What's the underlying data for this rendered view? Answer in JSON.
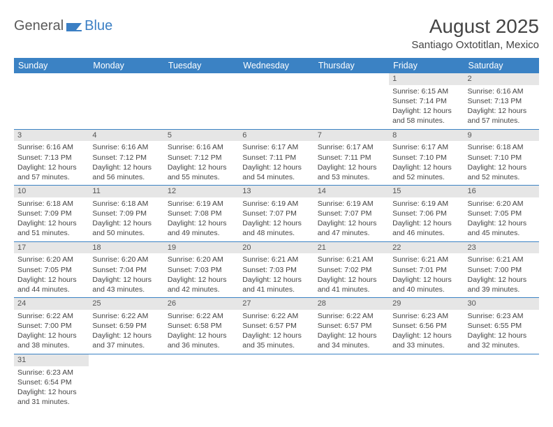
{
  "logo": {
    "text_general": "General",
    "text_blue": "Blue"
  },
  "title": "August 2025",
  "location": "Santiago Oxtotitlan, Mexico",
  "colors": {
    "header_bg": "#3b82c4",
    "header_text": "#ffffff",
    "daynum_bg": "#e6e6e6",
    "row_border": "#3b82c4",
    "body_text": "#444444",
    "logo_gray": "#5a5a5a",
    "logo_blue": "#3b7fc4",
    "page_bg": "#ffffff"
  },
  "typography": {
    "title_fontsize": 28,
    "location_fontsize": 15,
    "dayheader_fontsize": 12.5,
    "cell_fontsize": 10.5,
    "daynum_fontsize": 11
  },
  "day_headers": [
    "Sunday",
    "Monday",
    "Tuesday",
    "Wednesday",
    "Thursday",
    "Friday",
    "Saturday"
  ],
  "weeks": [
    [
      null,
      null,
      null,
      null,
      null,
      {
        "n": "1",
        "sr": "Sunrise: 6:15 AM",
        "ss": "Sunset: 7:14 PM",
        "dl": "Daylight: 12 hours and 58 minutes."
      },
      {
        "n": "2",
        "sr": "Sunrise: 6:16 AM",
        "ss": "Sunset: 7:13 PM",
        "dl": "Daylight: 12 hours and 57 minutes."
      }
    ],
    [
      {
        "n": "3",
        "sr": "Sunrise: 6:16 AM",
        "ss": "Sunset: 7:13 PM",
        "dl": "Daylight: 12 hours and 57 minutes."
      },
      {
        "n": "4",
        "sr": "Sunrise: 6:16 AM",
        "ss": "Sunset: 7:12 PM",
        "dl": "Daylight: 12 hours and 56 minutes."
      },
      {
        "n": "5",
        "sr": "Sunrise: 6:16 AM",
        "ss": "Sunset: 7:12 PM",
        "dl": "Daylight: 12 hours and 55 minutes."
      },
      {
        "n": "6",
        "sr": "Sunrise: 6:17 AM",
        "ss": "Sunset: 7:11 PM",
        "dl": "Daylight: 12 hours and 54 minutes."
      },
      {
        "n": "7",
        "sr": "Sunrise: 6:17 AM",
        "ss": "Sunset: 7:11 PM",
        "dl": "Daylight: 12 hours and 53 minutes."
      },
      {
        "n": "8",
        "sr": "Sunrise: 6:17 AM",
        "ss": "Sunset: 7:10 PM",
        "dl": "Daylight: 12 hours and 52 minutes."
      },
      {
        "n": "9",
        "sr": "Sunrise: 6:18 AM",
        "ss": "Sunset: 7:10 PM",
        "dl": "Daylight: 12 hours and 52 minutes."
      }
    ],
    [
      {
        "n": "10",
        "sr": "Sunrise: 6:18 AM",
        "ss": "Sunset: 7:09 PM",
        "dl": "Daylight: 12 hours and 51 minutes."
      },
      {
        "n": "11",
        "sr": "Sunrise: 6:18 AM",
        "ss": "Sunset: 7:09 PM",
        "dl": "Daylight: 12 hours and 50 minutes."
      },
      {
        "n": "12",
        "sr": "Sunrise: 6:19 AM",
        "ss": "Sunset: 7:08 PM",
        "dl": "Daylight: 12 hours and 49 minutes."
      },
      {
        "n": "13",
        "sr": "Sunrise: 6:19 AM",
        "ss": "Sunset: 7:07 PM",
        "dl": "Daylight: 12 hours and 48 minutes."
      },
      {
        "n": "14",
        "sr": "Sunrise: 6:19 AM",
        "ss": "Sunset: 7:07 PM",
        "dl": "Daylight: 12 hours and 47 minutes."
      },
      {
        "n": "15",
        "sr": "Sunrise: 6:19 AM",
        "ss": "Sunset: 7:06 PM",
        "dl": "Daylight: 12 hours and 46 minutes."
      },
      {
        "n": "16",
        "sr": "Sunrise: 6:20 AM",
        "ss": "Sunset: 7:05 PM",
        "dl": "Daylight: 12 hours and 45 minutes."
      }
    ],
    [
      {
        "n": "17",
        "sr": "Sunrise: 6:20 AM",
        "ss": "Sunset: 7:05 PM",
        "dl": "Daylight: 12 hours and 44 minutes."
      },
      {
        "n": "18",
        "sr": "Sunrise: 6:20 AM",
        "ss": "Sunset: 7:04 PM",
        "dl": "Daylight: 12 hours and 43 minutes."
      },
      {
        "n": "19",
        "sr": "Sunrise: 6:20 AM",
        "ss": "Sunset: 7:03 PM",
        "dl": "Daylight: 12 hours and 42 minutes."
      },
      {
        "n": "20",
        "sr": "Sunrise: 6:21 AM",
        "ss": "Sunset: 7:03 PM",
        "dl": "Daylight: 12 hours and 41 minutes."
      },
      {
        "n": "21",
        "sr": "Sunrise: 6:21 AM",
        "ss": "Sunset: 7:02 PM",
        "dl": "Daylight: 12 hours and 41 minutes."
      },
      {
        "n": "22",
        "sr": "Sunrise: 6:21 AM",
        "ss": "Sunset: 7:01 PM",
        "dl": "Daylight: 12 hours and 40 minutes."
      },
      {
        "n": "23",
        "sr": "Sunrise: 6:21 AM",
        "ss": "Sunset: 7:00 PM",
        "dl": "Daylight: 12 hours and 39 minutes."
      }
    ],
    [
      {
        "n": "24",
        "sr": "Sunrise: 6:22 AM",
        "ss": "Sunset: 7:00 PM",
        "dl": "Daylight: 12 hours and 38 minutes."
      },
      {
        "n": "25",
        "sr": "Sunrise: 6:22 AM",
        "ss": "Sunset: 6:59 PM",
        "dl": "Daylight: 12 hours and 37 minutes."
      },
      {
        "n": "26",
        "sr": "Sunrise: 6:22 AM",
        "ss": "Sunset: 6:58 PM",
        "dl": "Daylight: 12 hours and 36 minutes."
      },
      {
        "n": "27",
        "sr": "Sunrise: 6:22 AM",
        "ss": "Sunset: 6:57 PM",
        "dl": "Daylight: 12 hours and 35 minutes."
      },
      {
        "n": "28",
        "sr": "Sunrise: 6:22 AM",
        "ss": "Sunset: 6:57 PM",
        "dl": "Daylight: 12 hours and 34 minutes."
      },
      {
        "n": "29",
        "sr": "Sunrise: 6:23 AM",
        "ss": "Sunset: 6:56 PM",
        "dl": "Daylight: 12 hours and 33 minutes."
      },
      {
        "n": "30",
        "sr": "Sunrise: 6:23 AM",
        "ss": "Sunset: 6:55 PM",
        "dl": "Daylight: 12 hours and 32 minutes."
      }
    ],
    [
      {
        "n": "31",
        "sr": "Sunrise: 6:23 AM",
        "ss": "Sunset: 6:54 PM",
        "dl": "Daylight: 12 hours and 31 minutes."
      },
      null,
      null,
      null,
      null,
      null,
      null
    ]
  ]
}
